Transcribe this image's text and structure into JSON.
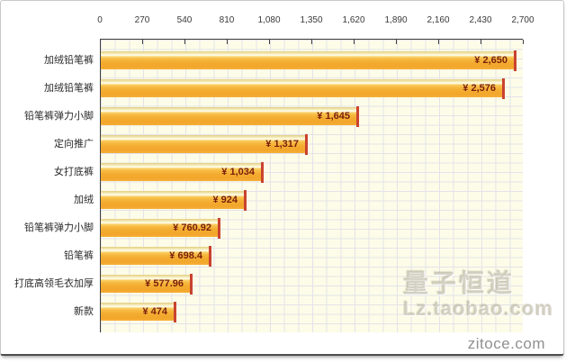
{
  "chart_data": {
    "type": "bar",
    "orientation": "horizontal",
    "title": "",
    "xlabel": "",
    "ylabel": "",
    "categories": [
      "加绒铅笔裤",
      "加绒铅笔裤",
      "铅笔裤弹力小脚",
      "定向推广",
      "女打底裤",
      "加绒",
      "铅笔裤弹力小脚",
      "铅笔裤",
      "打底高领毛衣加厚",
      "新款"
    ],
    "values": [
      2650,
      2576,
      1645,
      1317,
      1034,
      924,
      760.92,
      698.4,
      577.96,
      474
    ],
    "value_labels": [
      "¥ 2,650",
      "¥ 2,576",
      "¥ 1,645",
      "¥ 1,317",
      "¥ 1,034",
      "¥ 924",
      "¥ 760.92",
      "¥ 698.4",
      "¥ 577.96",
      "¥ 474"
    ],
    "x_ticks": [
      "0",
      "270",
      "540",
      "810",
      "1,080",
      "1,350",
      "1,620",
      "1,890",
      "2,160",
      "2,430",
      "2,700"
    ],
    "xlim": [
      0,
      2700
    ],
    "grid": true,
    "legend_position": "none",
    "colors": {
      "bar_main": "#F5AE34",
      "bar_gloss_highlight": "#FEFBE7",
      "bar_top_band": "#E3CE83",
      "end_marker": "#C9432F",
      "value_text": "#7A1E0C",
      "plot_background": "#FDFCE8",
      "grid_line": "#E3E3EA",
      "axis_line": "#3F3F3F",
      "tick_text": "#3A3A3A",
      "category_text": "#2A2A2A"
    }
  },
  "watermark": {
    "line1": "量子恒道",
    "line2": "Lz.taobao.com"
  },
  "footer": {
    "site_label": "zitoce.com"
  }
}
